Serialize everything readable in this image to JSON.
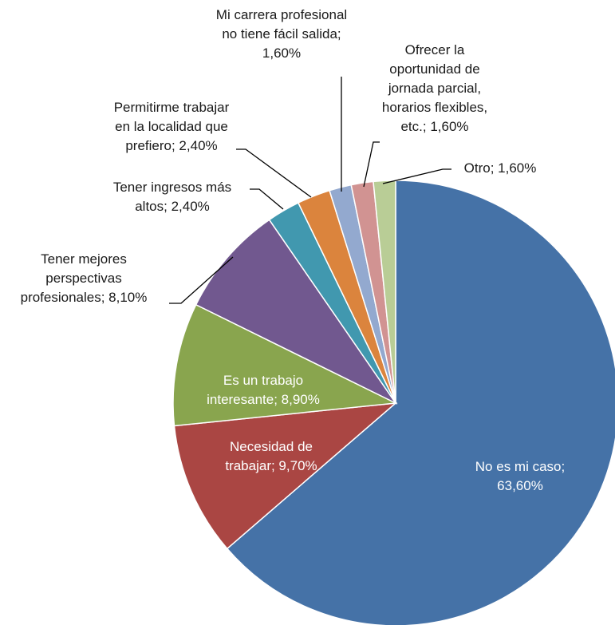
{
  "chart_data": {
    "type": "pie",
    "title": "",
    "legend": "none",
    "start_angle_deg": 0,
    "direction": "clockwise",
    "slices": [
      {
        "name": "No es mi caso",
        "value": 63.6,
        "color": "#4572A7",
        "label_lines": [
          "No es mi caso;",
          "63,60%"
        ]
      },
      {
        "name": "Necesidad de trabajar",
        "value": 9.7,
        "color": "#AA4643",
        "label_lines": [
          "Necesidad de",
          "trabajar; 9,70%"
        ]
      },
      {
        "name": "Es un trabajo interesante",
        "value": 8.9,
        "color": "#89A54E",
        "label_lines": [
          "Es un trabajo",
          "interesante; 8,90%"
        ]
      },
      {
        "name": "Tener mejores perspectivas profesionales",
        "value": 8.1,
        "color": "#71588F",
        "label_lines": [
          "Tener mejores",
          "perspectivas",
          "profesionales; 8,10%"
        ]
      },
      {
        "name": "Tener ingresos más altos",
        "value": 2.4,
        "color": "#4198AF",
        "label_lines": [
          "Tener ingresos más",
          "altos; 2,40%"
        ]
      },
      {
        "name": "Permitirme trabajar en la localidad que prefiero",
        "value": 2.4,
        "color": "#DB843D",
        "label_lines": [
          "Permitirme trabajar",
          "en la localidad  que",
          "prefiero; 2,40%"
        ]
      },
      {
        "name": "Mi carrera profesional no tiene fácil salida",
        "value": 1.6,
        "color": "#93A9CF",
        "label_lines": [
          "Mi carrera profesional",
          "no tiene fácil salida;",
          "1,60%"
        ]
      },
      {
        "name": "Ofrecer la oportunidad de jornada parcial, horarios flexibles, etc.",
        "value": 1.6,
        "color": "#D19392",
        "label_lines": [
          "Ofrecer la",
          "oportunidad de",
          "jornada parcial,",
          "horarios flexibles,",
          "etc.; 1,60%"
        ]
      },
      {
        "name": "Otro",
        "value": 1.6,
        "color": "#B9CD96",
        "label_lines": [
          "Otro; 1,60%"
        ]
      }
    ]
  }
}
